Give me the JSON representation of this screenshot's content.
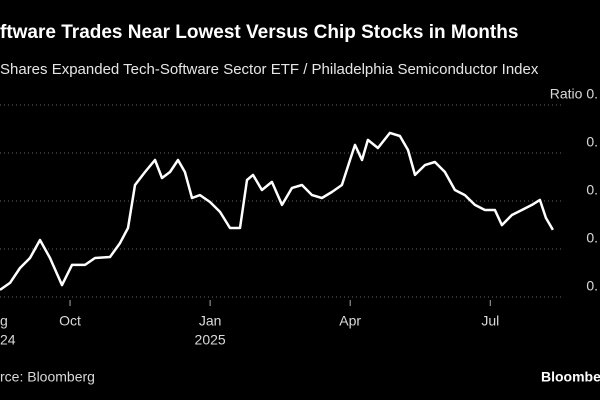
{
  "chart_data": {
    "type": "line",
    "title": "ftware Trades Near Lowest Versus Chip Stocks in Months",
    "subtitle": "Shares Expanded Tech-Software Sector ETF / Philadelphia Semiconductor Index",
    "source": "rce: Bloomberg",
    "brand": "Bloomberg",
    "x": [
      0.5,
      0.714,
      0.928,
      1.142,
      1.357,
      1.571,
      1.828,
      2.042,
      2.32,
      2.534,
      2.855,
      3.07,
      3.241,
      3.391,
      3.605,
      3.819,
      3.969,
      4.14,
      4.312,
      4.461,
      4.611,
      4.783,
      4.997,
      5.211,
      5.425,
      5.639,
      5.789,
      5.918,
      6.11,
      6.324,
      6.539,
      6.753,
      6.967,
      7.181,
      7.395,
      7.609,
      7.823,
      7.995,
      8.102,
      8.252,
      8.38,
      8.594,
      8.851,
      9.065,
      9.237,
      9.387,
      9.601,
      9.815,
      10.029,
      10.243,
      10.457,
      10.671,
      10.886,
      11.1,
      11.25,
      11.464,
      11.678,
      11.892,
      12.063,
      12.192,
      12.342
    ],
    "series": [
      {
        "color": "#ffffff",
        "values": [
          0.01588,
          0.01617,
          0.01679,
          0.01721,
          0.01796,
          0.01721,
          0.01608,
          0.01692,
          0.01692,
          0.01721,
          0.01725,
          0.01783,
          0.01846,
          0.02025,
          0.02079,
          0.02129,
          0.02054,
          0.02079,
          0.02129,
          0.02079,
          0.01971,
          0.01983,
          0.01954,
          0.01913,
          0.01846,
          0.01846,
          0.02046,
          0.02067,
          0.02004,
          0.02038,
          0.01942,
          0.02013,
          0.02025,
          0.01983,
          0.01971,
          0.01996,
          0.02025,
          0.02129,
          0.02192,
          0.02129,
          0.02213,
          0.02179,
          0.02242,
          0.02229,
          0.02171,
          0.02067,
          0.02108,
          0.02121,
          0.02079,
          0.02004,
          0.01983,
          0.01942,
          0.01921,
          0.01921,
          0.01858,
          0.019,
          0.01921,
          0.01942,
          0.01963,
          0.01888,
          0.01838
        ]
      }
    ],
    "xlim": [
      0.5,
      13.35
    ],
    "xticks": [
      {
        "value": 0,
        "label": "g"
      },
      {
        "value": 2,
        "label": "Oct"
      },
      {
        "value": 5,
        "label": "Jan"
      },
      {
        "value": 8,
        "label": "Apr"
      },
      {
        "value": 11,
        "label": "Jul"
      }
    ],
    "year_labels": [
      {
        "value": 0,
        "label": "24"
      },
      {
        "value": 5,
        "label": "2025"
      }
    ],
    "ylim": [
      0.015,
      0.0255
    ],
    "yticks": [
      {
        "value": 0.016,
        "label": "0."
      },
      {
        "value": 0.018,
        "label": "0."
      },
      {
        "value": 0.02,
        "label": "0."
      },
      {
        "value": 0.022,
        "label": "0."
      },
      {
        "value": 0.024,
        "label": "Ratio 0."
      }
    ],
    "grid": true
  }
}
